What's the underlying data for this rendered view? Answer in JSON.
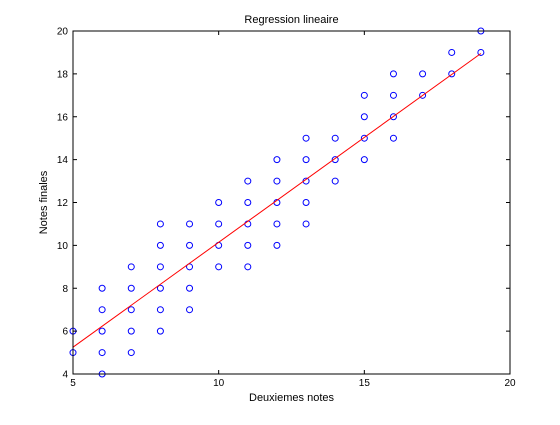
{
  "chart_data": {
    "type": "scatter",
    "title": "Regression lineaire",
    "xlabel": "Deuxiemes notes",
    "ylabel": "Notes finales",
    "xlim": [
      5,
      20
    ],
    "ylim": [
      4,
      20
    ],
    "xticks": [
      5,
      10,
      15,
      20
    ],
    "yticks": [
      4,
      6,
      8,
      10,
      12,
      14,
      16,
      18,
      20
    ],
    "grid": false,
    "points": [
      [
        5,
        5
      ],
      [
        5,
        6
      ],
      [
        6,
        4
      ],
      [
        6,
        5
      ],
      [
        6,
        6
      ],
      [
        6,
        7
      ],
      [
        6,
        8
      ],
      [
        7,
        5
      ],
      [
        7,
        6
      ],
      [
        7,
        7
      ],
      [
        7,
        8
      ],
      [
        7,
        9
      ],
      [
        8,
        6
      ],
      [
        8,
        7
      ],
      [
        8,
        8
      ],
      [
        8,
        9
      ],
      [
        8,
        10
      ],
      [
        8,
        11
      ],
      [
        9,
        7
      ],
      [
        9,
        8
      ],
      [
        9,
        9
      ],
      [
        9,
        10
      ],
      [
        9,
        11
      ],
      [
        10,
        9
      ],
      [
        10,
        10
      ],
      [
        10,
        11
      ],
      [
        10,
        12
      ],
      [
        11,
        9
      ],
      [
        11,
        10
      ],
      [
        11,
        11
      ],
      [
        11,
        12
      ],
      [
        11,
        13
      ],
      [
        12,
        10
      ],
      [
        12,
        11
      ],
      [
        12,
        12
      ],
      [
        12,
        13
      ],
      [
        12,
        14
      ],
      [
        13,
        11
      ],
      [
        13,
        12
      ],
      [
        13,
        13
      ],
      [
        13,
        14
      ],
      [
        13,
        15
      ],
      [
        14,
        13
      ],
      [
        14,
        14
      ],
      [
        14,
        15
      ],
      [
        15,
        14
      ],
      [
        15,
        15
      ],
      [
        15,
        16
      ],
      [
        15,
        17
      ],
      [
        16,
        15
      ],
      [
        16,
        16
      ],
      [
        16,
        17
      ],
      [
        16,
        18
      ],
      [
        17,
        17
      ],
      [
        17,
        18
      ],
      [
        18,
        18
      ],
      [
        18,
        19
      ],
      [
        19,
        19
      ],
      [
        19,
        20
      ]
    ],
    "regression_line": {
      "x": [
        5,
        19
      ],
      "y": [
        5.25,
        18.95
      ]
    },
    "colors": {
      "points": "#0000ff",
      "line": "#ff0000",
      "axes": "#000000"
    }
  }
}
